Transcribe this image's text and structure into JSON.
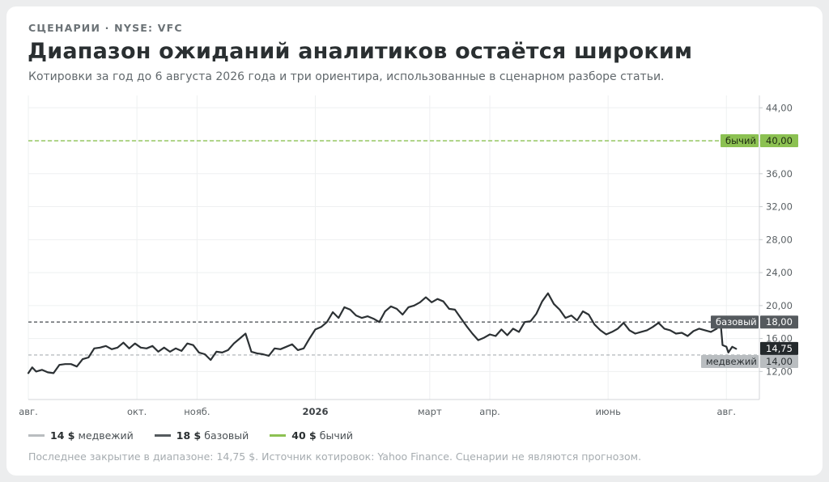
{
  "header": {
    "kicker": "СЦЕНАРИИ · NYSE: VFC",
    "title": "Диапазон ожиданий аналитиков остаётся широким",
    "subtitle": "Котировки за год до 6 августа 2026 года и три ориентира, использованные в сценарном разборе статьи."
  },
  "legend": {
    "bear": {
      "value": "14 $",
      "label": "медвежий",
      "color": "#b9bdc0"
    },
    "base": {
      "value": "18 $",
      "label": "базовый",
      "color": "#555a5e"
    },
    "bull": {
      "value": "40 $",
      "label": "бычий",
      "color": "#8cc152"
    }
  },
  "footnote": "Последнее закрытие в диапазоне: 14,75 $. Источник котировок: Yahoo Finance. Сценарии не являются прогнозом.",
  "chart_data": {
    "type": "line",
    "title": "Диапазон ожиданий аналитиков остаётся широким",
    "ylim": [
      8.6,
      45.5
    ],
    "xlim": [
      "2025-08-06",
      "2026-08-18"
    ],
    "grid": true,
    "y_ticks": [
      "12,00",
      "16,00",
      "20,00",
      "24,00",
      "28,00",
      "32,00",
      "36,00",
      "40,00",
      "44,00"
    ],
    "y_tick_values": [
      12,
      16,
      20,
      24,
      28,
      32,
      36,
      40,
      44
    ],
    "x_ticks": [
      {
        "date": "2025-08-06",
        "label": "авг."
      },
      {
        "date": "2025-10-01",
        "label": "окт."
      },
      {
        "date": "2025-11-01",
        "label": "нояб."
      },
      {
        "date": "2026-01-01",
        "label": "2026"
      },
      {
        "date": "2026-03-01",
        "label": "март"
      },
      {
        "date": "2026-04-01",
        "label": "апр."
      },
      {
        "date": "2026-06-01",
        "label": "июнь"
      },
      {
        "date": "2026-08-01",
        "label": "авг."
      }
    ],
    "reference_lines": [
      {
        "name": "бычий",
        "value": 40,
        "label": "40,00",
        "color": "#8cc152",
        "dash": "5,3"
      },
      {
        "name": "базовый",
        "value": 18,
        "label": "18,00",
        "color": "#555a5e",
        "dash": "4,3"
      },
      {
        "name": "медвежий",
        "value": 14,
        "label": "14,00",
        "color": "#b9bdc0",
        "dash": "4,3"
      }
    ],
    "last_price": {
      "value": 14.75,
      "label": "14,75"
    },
    "series": [
      {
        "values": [
          [
            "2025-08-06",
            11.8
          ],
          [
            "2025-08-08",
            12.5
          ],
          [
            "2025-08-10",
            12.0
          ],
          [
            "2025-08-13",
            12.2
          ],
          [
            "2025-08-16",
            11.9
          ],
          [
            "2025-08-19",
            11.8
          ],
          [
            "2025-08-22",
            12.8
          ],
          [
            "2025-08-25",
            12.9
          ],
          [
            "2025-08-28",
            12.9
          ],
          [
            "2025-08-31",
            12.6
          ],
          [
            "2025-09-03",
            13.5
          ],
          [
            "2025-09-06",
            13.7
          ],
          [
            "2025-09-09",
            14.8
          ],
          [
            "2025-09-12",
            14.9
          ],
          [
            "2025-09-15",
            15.1
          ],
          [
            "2025-09-18",
            14.7
          ],
          [
            "2025-09-21",
            14.9
          ],
          [
            "2025-09-24",
            15.5
          ],
          [
            "2025-09-27",
            14.8
          ],
          [
            "2025-09-30",
            15.4
          ],
          [
            "2025-10-03",
            14.9
          ],
          [
            "2025-10-06",
            14.8
          ],
          [
            "2025-10-09",
            15.1
          ],
          [
            "2025-10-12",
            14.4
          ],
          [
            "2025-10-15",
            14.9
          ],
          [
            "2025-10-18",
            14.4
          ],
          [
            "2025-10-21",
            14.8
          ],
          [
            "2025-10-24",
            14.5
          ],
          [
            "2025-10-27",
            15.4
          ],
          [
            "2025-10-30",
            15.2
          ],
          [
            "2025-11-02",
            14.3
          ],
          [
            "2025-11-05",
            14.1
          ],
          [
            "2025-11-08",
            13.4
          ],
          [
            "2025-11-11",
            14.4
          ],
          [
            "2025-11-14",
            14.3
          ],
          [
            "2025-11-17",
            14.6
          ],
          [
            "2025-11-20",
            15.4
          ],
          [
            "2025-11-23",
            16.0
          ],
          [
            "2025-11-26",
            16.6
          ],
          [
            "2025-11-29",
            14.4
          ],
          [
            "2025-12-02",
            14.2
          ],
          [
            "2025-12-05",
            14.1
          ],
          [
            "2025-12-08",
            13.9
          ],
          [
            "2025-12-11",
            14.8
          ],
          [
            "2025-12-14",
            14.7
          ],
          [
            "2025-12-17",
            15.0
          ],
          [
            "2025-12-20",
            15.3
          ],
          [
            "2025-12-23",
            14.6
          ],
          [
            "2025-12-26",
            14.8
          ],
          [
            "2025-12-29",
            16.0
          ],
          [
            "2026-01-01",
            17.1
          ],
          [
            "2026-01-04",
            17.4
          ],
          [
            "2026-01-07",
            18.0
          ],
          [
            "2026-01-10",
            19.2
          ],
          [
            "2026-01-13",
            18.5
          ],
          [
            "2026-01-16",
            19.8
          ],
          [
            "2026-01-19",
            19.5
          ],
          [
            "2026-01-22",
            18.8
          ],
          [
            "2026-01-25",
            18.5
          ],
          [
            "2026-01-28",
            18.7
          ],
          [
            "2026-01-31",
            18.4
          ],
          [
            "2026-02-03",
            18.0
          ],
          [
            "2026-02-06",
            19.3
          ],
          [
            "2026-02-09",
            19.9
          ],
          [
            "2026-02-12",
            19.6
          ],
          [
            "2026-02-15",
            18.9
          ],
          [
            "2026-02-18",
            19.8
          ],
          [
            "2026-02-21",
            20.0
          ],
          [
            "2026-02-24",
            20.4
          ],
          [
            "2026-02-27",
            21.0
          ],
          [
            "2026-03-02",
            20.4
          ],
          [
            "2026-03-05",
            20.8
          ],
          [
            "2026-03-08",
            20.5
          ],
          [
            "2026-03-11",
            19.6
          ],
          [
            "2026-03-14",
            19.5
          ],
          [
            "2026-03-17",
            18.5
          ],
          [
            "2026-03-20",
            17.5
          ],
          [
            "2026-03-23",
            16.6
          ],
          [
            "2026-03-26",
            15.8
          ],
          [
            "2026-03-29",
            16.1
          ],
          [
            "2026-04-01",
            16.5
          ],
          [
            "2026-04-04",
            16.3
          ],
          [
            "2026-04-07",
            17.1
          ],
          [
            "2026-04-10",
            16.4
          ],
          [
            "2026-04-13",
            17.2
          ],
          [
            "2026-04-16",
            16.8
          ],
          [
            "2026-04-19",
            18.0
          ],
          [
            "2026-04-22",
            18.1
          ],
          [
            "2026-04-25",
            19.0
          ],
          [
            "2026-04-28",
            20.5
          ],
          [
            "2026-05-01",
            21.5
          ],
          [
            "2026-05-04",
            20.2
          ],
          [
            "2026-05-07",
            19.5
          ],
          [
            "2026-05-10",
            18.5
          ],
          [
            "2026-05-13",
            18.8
          ],
          [
            "2026-05-16",
            18.2
          ],
          [
            "2026-05-19",
            19.3
          ],
          [
            "2026-05-22",
            18.9
          ],
          [
            "2026-05-25",
            17.7
          ],
          [
            "2026-05-28",
            17.0
          ],
          [
            "2026-05-31",
            16.5
          ],
          [
            "2026-06-03",
            16.8
          ],
          [
            "2026-06-06",
            17.2
          ],
          [
            "2026-06-09",
            17.9
          ],
          [
            "2026-06-12",
            17.0
          ],
          [
            "2026-06-15",
            16.6
          ],
          [
            "2026-06-18",
            16.8
          ],
          [
            "2026-06-21",
            17.0
          ],
          [
            "2026-06-24",
            17.4
          ],
          [
            "2026-06-27",
            17.9
          ],
          [
            "2026-06-30",
            17.2
          ],
          [
            "2026-07-03",
            17.0
          ],
          [
            "2026-07-06",
            16.6
          ],
          [
            "2026-07-09",
            16.7
          ],
          [
            "2026-07-12",
            16.3
          ],
          [
            "2026-07-15",
            16.9
          ],
          [
            "2026-07-18",
            17.2
          ],
          [
            "2026-07-21",
            17.0
          ],
          [
            "2026-07-24",
            16.8
          ],
          [
            "2026-07-27",
            17.2
          ],
          [
            "2026-07-29",
            17.9
          ],
          [
            "2026-07-30",
            15.2
          ],
          [
            "2026-08-01",
            15.0
          ],
          [
            "2026-08-02",
            14.3
          ],
          [
            "2026-08-04",
            15.0
          ],
          [
            "2026-08-06",
            14.75
          ]
        ]
      }
    ]
  }
}
